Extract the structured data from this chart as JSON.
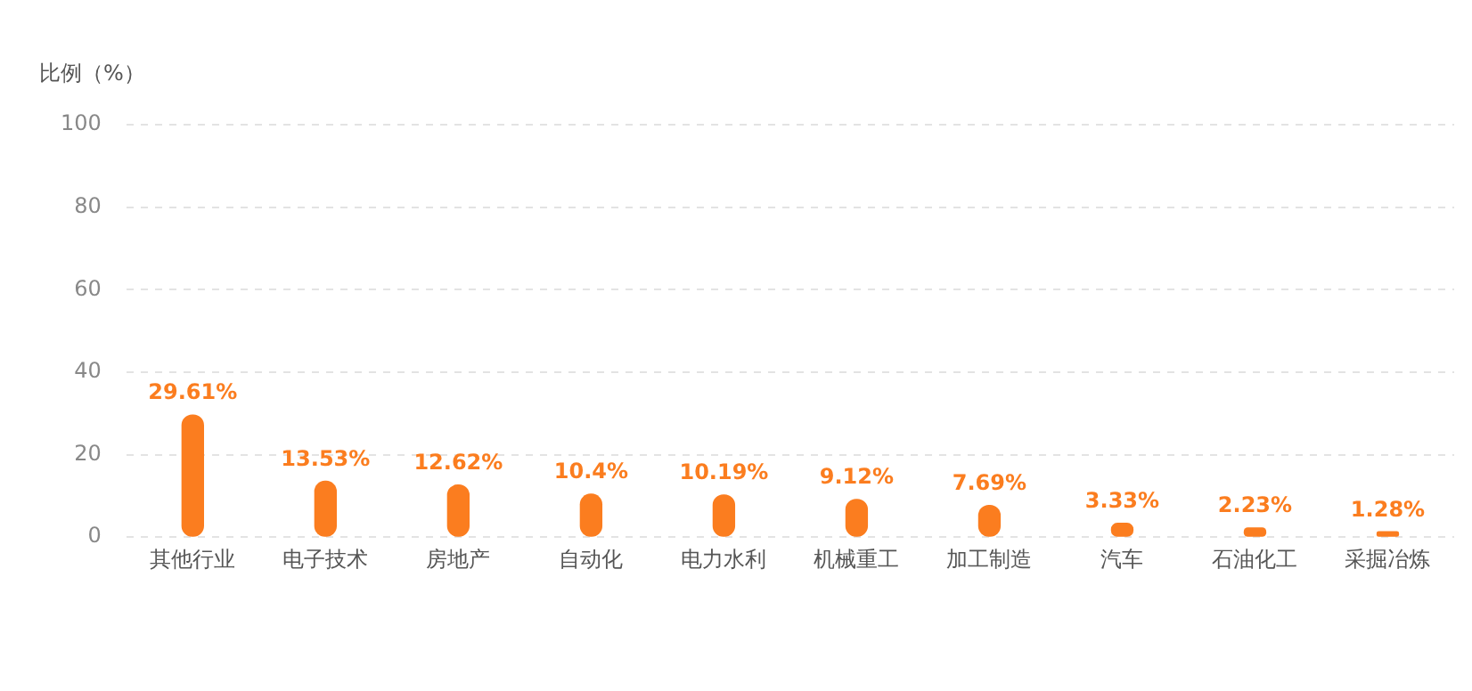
{
  "chart_data": {
    "type": "bar",
    "ylabel": "比例（%）",
    "categories": [
      "其他行业",
      "电子技术",
      "房地产",
      "自动化",
      "电力水利",
      "机械重工",
      "加工制造",
      "汽车",
      "石油化工",
      "采掘冶炼"
    ],
    "values": [
      29.61,
      13.53,
      12.62,
      10.4,
      10.19,
      9.12,
      7.69,
      3.33,
      2.23,
      1.28
    ],
    "value_labels": [
      "29.61%",
      "13.53%",
      "12.62%",
      "10.4%",
      "10.19%",
      "9.12%",
      "7.69%",
      "3.33%",
      "2.23%",
      "1.28%"
    ],
    "color": "#fb7d1f",
    "ylim": [
      0,
      100
    ],
    "yticks": [
      0,
      20,
      40,
      60,
      80,
      100
    ],
    "grid": "y",
    "legend": false
  }
}
